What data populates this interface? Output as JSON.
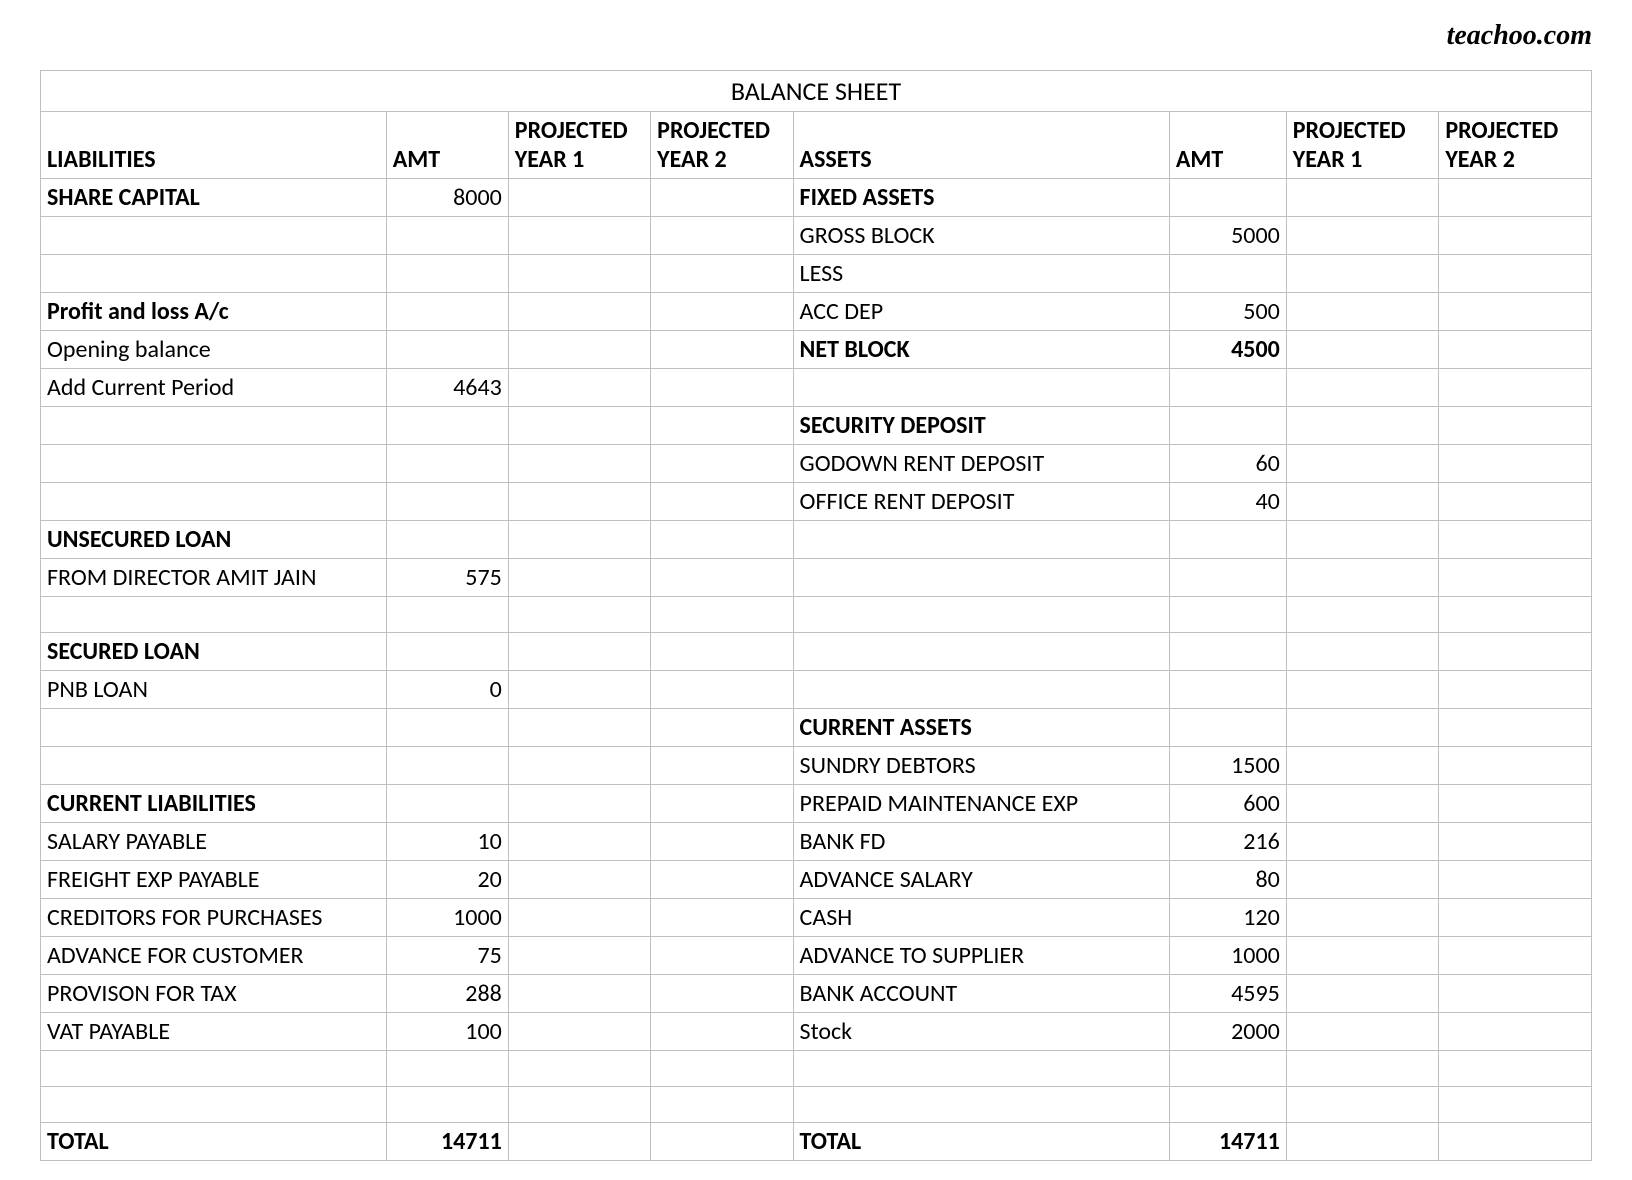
{
  "watermark": "teachoo.com",
  "table": {
    "type": "table",
    "title": "BALANCE SHEET",
    "border_color": "#bfbfbf",
    "background_color": "#ffffff",
    "font_family": "Calibri",
    "header_fontsize": 24,
    "cell_fontsize": 24,
    "columns": {
      "liab_label": "LIABILITIES",
      "liab_amt": "AMT",
      "liab_py1": "PROJECTED YEAR 1",
      "liab_py2": "PROJECTED YEAR 2",
      "asset_label": "ASSETS",
      "asset_amt": "AMT",
      "asset_py1": "PROJECTED YEAR 1",
      "asset_py2": "PROJECTED YEAR 2"
    },
    "rows": [
      {
        "l": "SHARE CAPITAL",
        "lb": true,
        "la": "8000",
        "a": "FIXED ASSETS",
        "ab": true,
        "aa": ""
      },
      {
        "l": "",
        "la": "",
        "a": "GROSS BLOCK",
        "aa": "5000"
      },
      {
        "l": "",
        "la": "",
        "a": "LESS",
        "aa": ""
      },
      {
        "l": "Profit and loss A/c",
        "lb": true,
        "la": "",
        "a": "ACC DEP",
        "aa": "500"
      },
      {
        "l": "Opening balance",
        "la": "",
        "a": "NET BLOCK",
        "ab": true,
        "aa": "4500",
        "aab": true
      },
      {
        "l": "Add Current Period",
        "la": "4643",
        "a": "",
        "aa": ""
      },
      {
        "l": "",
        "la": "",
        "a": "SECURITY DEPOSIT",
        "ab": true,
        "aa": ""
      },
      {
        "l": "",
        "la": "",
        "a": "GODOWN RENT DEPOSIT",
        "aa": "60"
      },
      {
        "l": "",
        "la": "",
        "a": "OFFICE RENT DEPOSIT",
        "aa": "40"
      },
      {
        "l": "UNSECURED LOAN",
        "lb": true,
        "la": "",
        "a": "",
        "aa": ""
      },
      {
        "l": "FROM DIRECTOR AMIT JAIN",
        "la": "575",
        "a": "",
        "aa": ""
      },
      {
        "l": "",
        "la": "",
        "a": "",
        "aa": ""
      },
      {
        "l": "SECURED LOAN",
        "lb": true,
        "la": "",
        "a": "",
        "aa": ""
      },
      {
        "l": "PNB LOAN",
        "la": "0",
        "a": "",
        "aa": ""
      },
      {
        "l": "",
        "la": "",
        "a": "CURRENT ASSETS",
        "ab": true,
        "aa": ""
      },
      {
        "l": "",
        "la": "",
        "a": "SUNDRY DEBTORS",
        "aa": "1500"
      },
      {
        "l": "CURRENT LIABILITIES",
        "lb": true,
        "la": "",
        "a": "PREPAID MAINTENANCE EXP",
        "aa": "600"
      },
      {
        "l": "SALARY PAYABLE",
        "la": "10",
        "a": "BANK FD",
        "aa": "216"
      },
      {
        "l": "FREIGHT EXP PAYABLE",
        "la": "20",
        "a": "ADVANCE SALARY",
        "aa": "80"
      },
      {
        "l": "CREDITORS FOR PURCHASES",
        "la": "1000",
        "a": "CASH",
        "aa": "120"
      },
      {
        "l": "ADVANCE FOR CUSTOMER",
        "la": "75",
        "a": "ADVANCE TO SUPPLIER",
        "aa": "1000"
      },
      {
        "l": "PROVISON FOR TAX",
        "la": "288",
        "a": "BANK ACCOUNT",
        "aa": "4595"
      },
      {
        "l": "VAT PAYABLE",
        "la": "100",
        "a": "Stock",
        "aa": "2000"
      },
      {
        "l": "",
        "la": "",
        "a": "",
        "aa": ""
      },
      {
        "l": "",
        "la": "",
        "a": "",
        "aa": ""
      },
      {
        "l": "TOTAL",
        "lb": true,
        "la": "14711",
        "lab": true,
        "a": "TOTAL",
        "ab": true,
        "aa": "14711",
        "aab": true
      }
    ]
  }
}
